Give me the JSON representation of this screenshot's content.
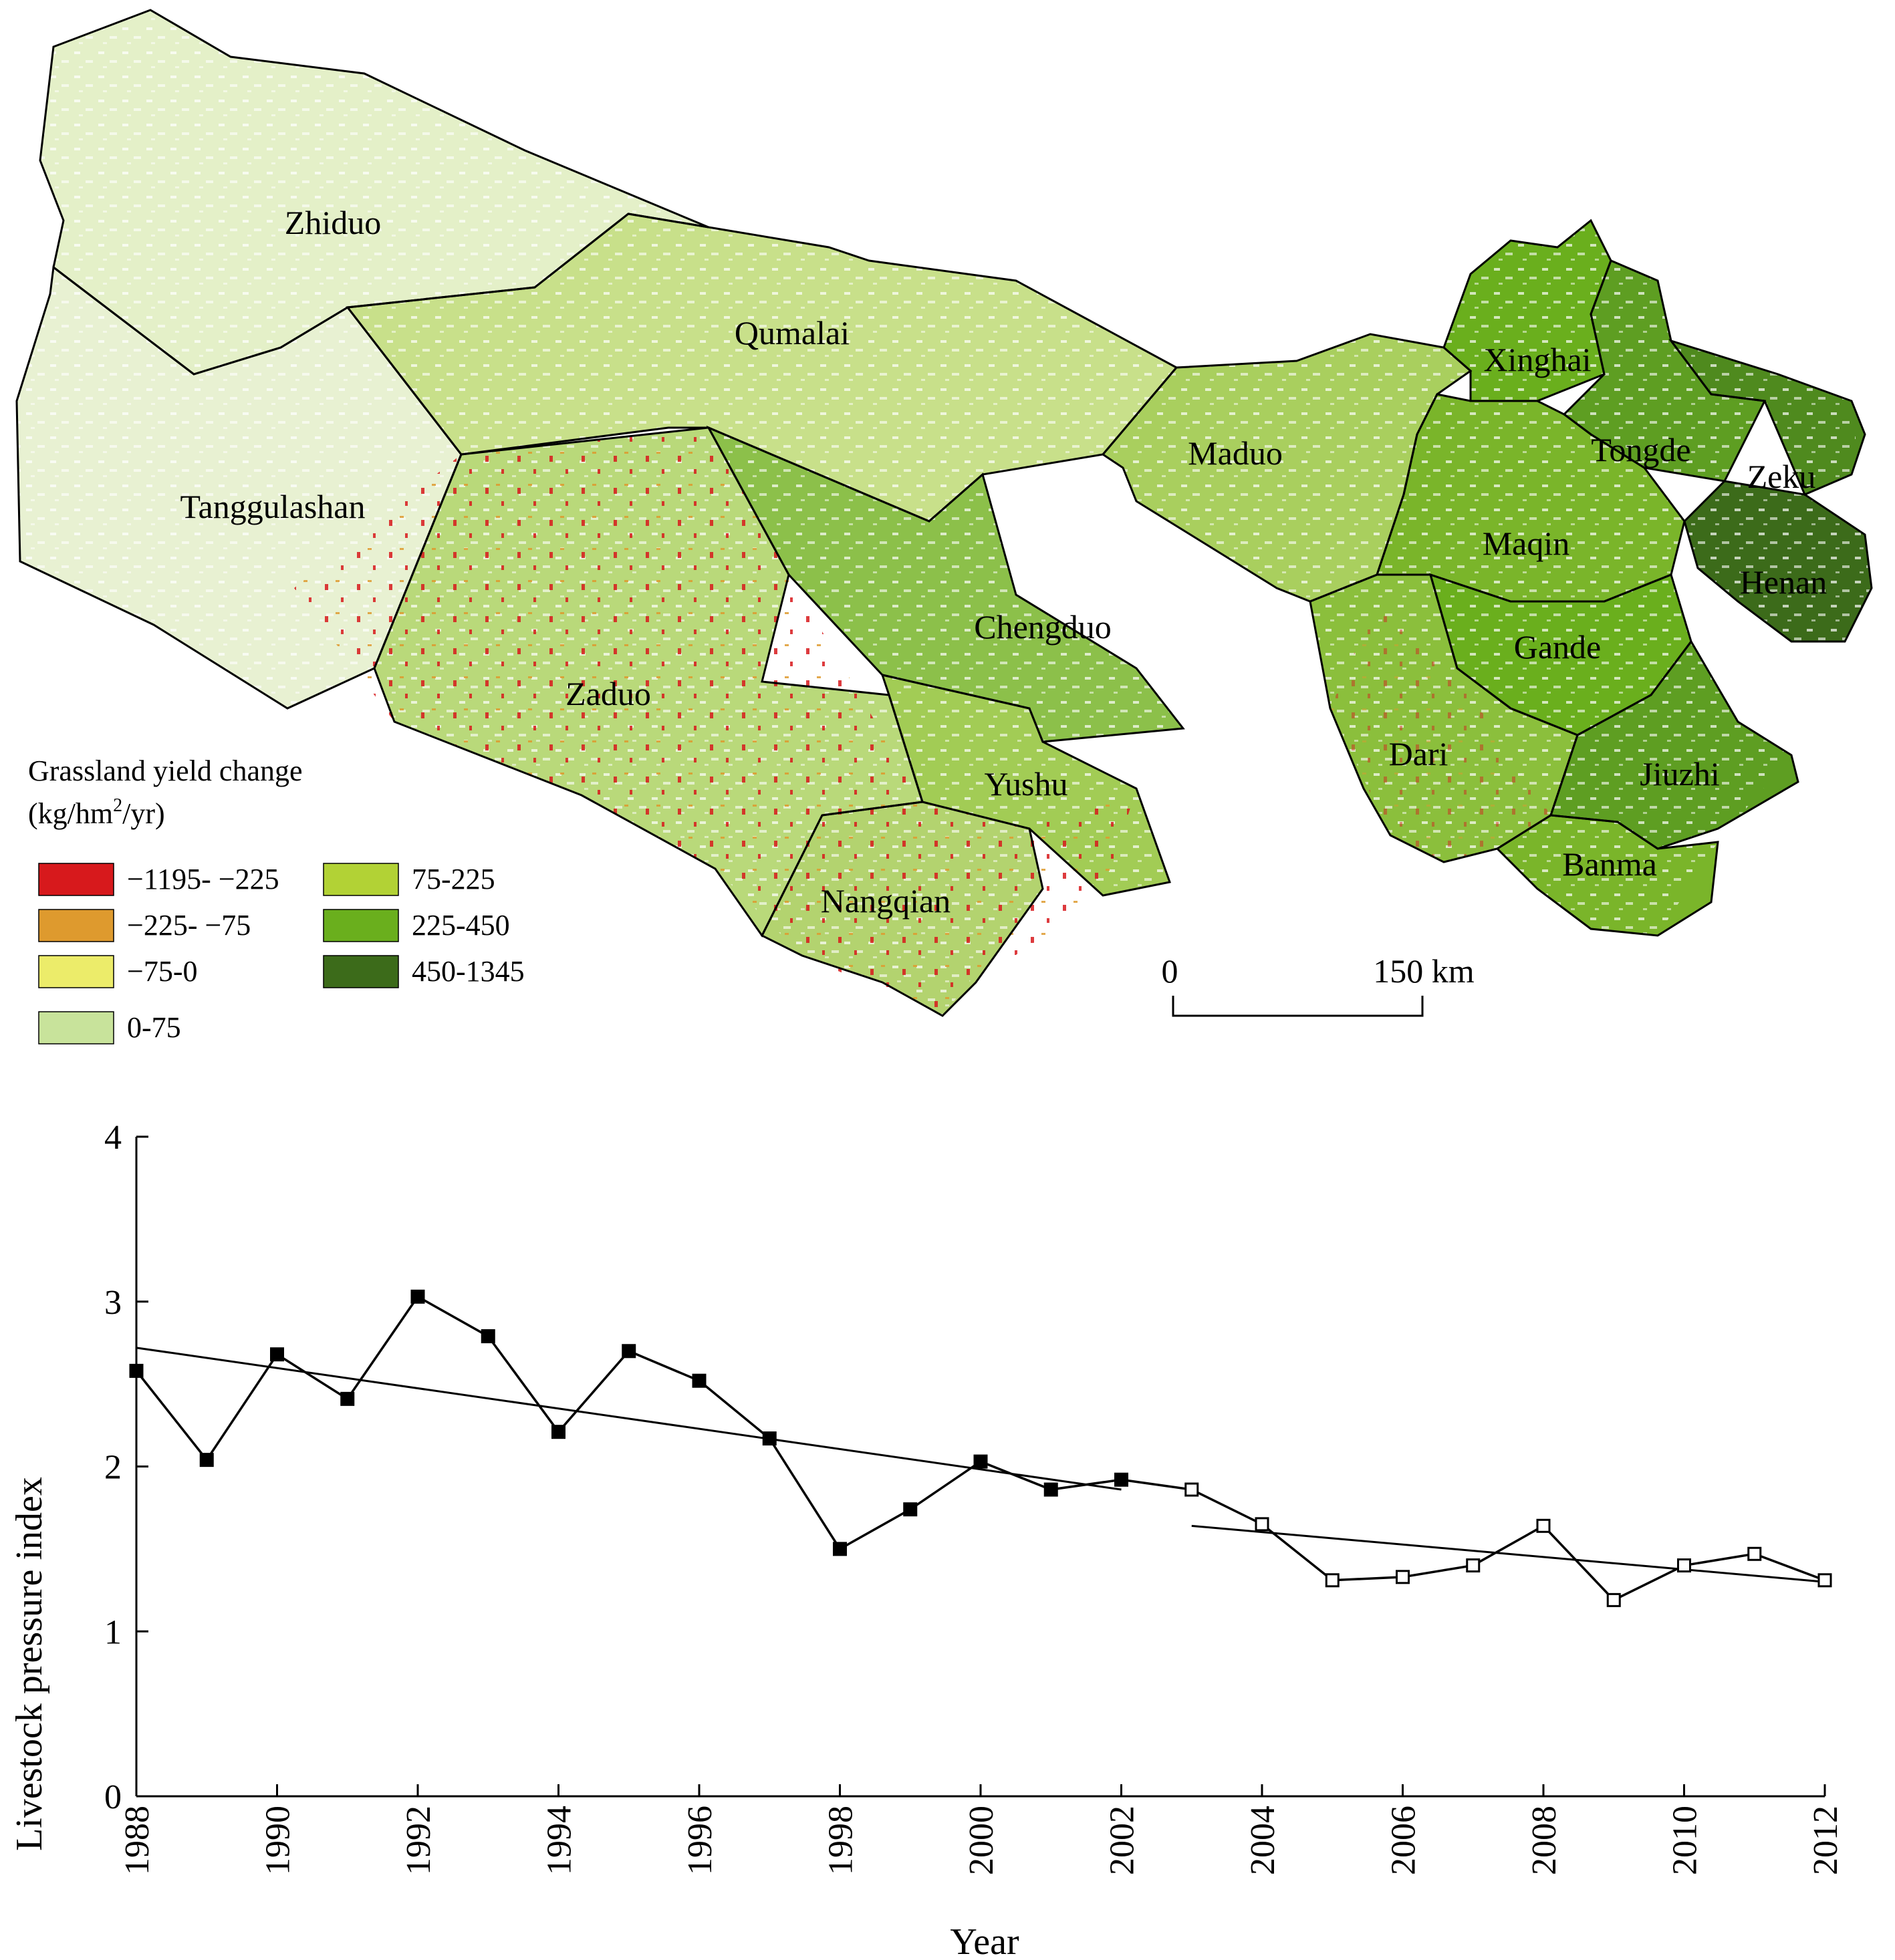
{
  "map": {
    "regions": [
      {
        "name": "Zhiduo"
      },
      {
        "name": "Qumalai"
      },
      {
        "name": "Tanggulashan"
      },
      {
        "name": "Maduo"
      },
      {
        "name": "Xinghai"
      },
      {
        "name": "Tongde"
      },
      {
        "name": "Zeku"
      },
      {
        "name": "Maqin"
      },
      {
        "name": "Henan"
      },
      {
        "name": "Chengduo"
      },
      {
        "name": "Zaduo"
      },
      {
        "name": "Gande"
      },
      {
        "name": "Dari"
      },
      {
        "name": "Jiuzhi"
      },
      {
        "name": "Yushu"
      },
      {
        "name": "Banma"
      },
      {
        "name": "Nangqian"
      }
    ],
    "legend": {
      "title_line1": "Grassland yield change",
      "title_line2_pre": "(kg/hm",
      "title_line2_sup": "2",
      "title_line2_post": "/yr)",
      "items": [
        {
          "label": "−1195- −225",
          "color": "#d7191c"
        },
        {
          "label": "−225- −75",
          "color": "#de9a2e"
        },
        {
          "label": "−75-0",
          "color": "#ecec6a"
        },
        {
          "label": "0-75",
          "color": "#c8e39b"
        },
        {
          "label": "75-225",
          "color": "#b2d235"
        },
        {
          "label": "225-450",
          "color": "#6aaf1d"
        },
        {
          "label": "450-1345",
          "color": "#3c6b1a"
        }
      ]
    },
    "scale_bar": {
      "start_label": "0",
      "end_label": "150 km"
    }
  },
  "chart_data": {
    "type": "line",
    "xlabel": "Year",
    "ylabel": "Livestock pressure index",
    "xlim": [
      1988,
      2012
    ],
    "ylim": [
      0,
      4
    ],
    "x_ticks": [
      1988,
      1990,
      1992,
      1994,
      1996,
      1998,
      2000,
      2002,
      2004,
      2006,
      2008,
      2010,
      2012
    ],
    "y_ticks": [
      0,
      1,
      2,
      3,
      4
    ],
    "grid": false,
    "series": [
      {
        "marker": "filled-square",
        "color": "#000000",
        "x": [
          1988,
          1989,
          1990,
          1991,
          1992,
          1993,
          1994,
          1995,
          1996,
          1997,
          1998,
          1999,
          2000,
          2001,
          2002
        ],
        "y": [
          2.58,
          2.04,
          2.68,
          2.41,
          3.03,
          2.79,
          2.21,
          2.7,
          2.52,
          2.17,
          1.5,
          1.74,
          2.03,
          1.86,
          1.92
        ]
      },
      {
        "marker": "open-square",
        "color": "#000000",
        "x": [
          2003,
          2004,
          2005,
          2006,
          2007,
          2008,
          2009,
          2010,
          2011,
          2012
        ],
        "y": [
          1.86,
          1.65,
          1.31,
          1.33,
          1.4,
          1.64,
          1.19,
          1.4,
          1.47,
          1.31
        ]
      }
    ],
    "trendlines": [
      {
        "x": [
          1988,
          2002
        ],
        "y": [
          2.72,
          1.86
        ]
      },
      {
        "x": [
          2003,
          2012
        ],
        "y": [
          1.64,
          1.3
        ]
      }
    ]
  }
}
